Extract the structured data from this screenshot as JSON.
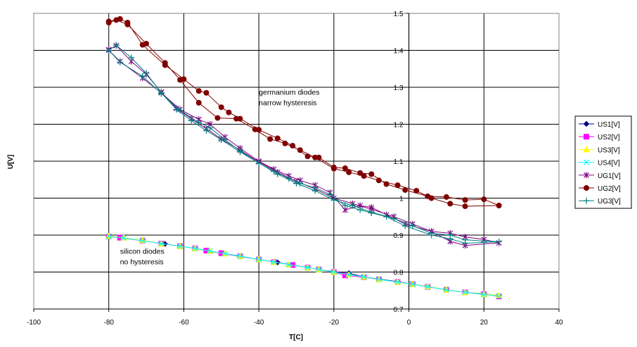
{
  "chart_data": {
    "type": "line",
    "xlabel": "T[C]",
    "ylabel": "U[V]",
    "xlim": [
      -100,
      40
    ],
    "ylim": [
      0.7,
      1.5
    ],
    "x_ticks": [
      -100,
      -80,
      -60,
      -40,
      -20,
      0,
      20,
      40
    ],
    "y_ticks": [
      0.7,
      0.8,
      0.9,
      1.0,
      1.1,
      1.2,
      1.3,
      1.4,
      1.5
    ],
    "x_tick_labels": [
      "-100",
      "-80",
      "-60",
      "-40",
      "-20",
      "0",
      "20",
      "40"
    ],
    "y_tick_labels": [
      "0.7",
      "0.8",
      "0.9",
      "1",
      "1.1",
      "1.2",
      "1.3",
      "1.4",
      "1.5"
    ],
    "grid": true,
    "legend_position": "right",
    "annotations": [
      {
        "lines": [
          "germanium diodes",
          "narrow hysteresis"
        ],
        "x": -40,
        "y": 1.28
      },
      {
        "lines": [
          "silicon diodes",
          "no hysteresis"
        ],
        "x": -77,
        "y": 0.85
      }
    ],
    "series": [
      {
        "name": "US1[V]",
        "color": "#000080",
        "marker": "diamond",
        "x": [
          -80,
          -77,
          -71,
          -65,
          -61,
          -57,
          -54,
          -50,
          -45,
          -40,
          -35,
          -31,
          -27,
          -24,
          -20,
          -16,
          -12,
          -8,
          -3,
          1,
          5,
          10,
          15,
          20,
          24
        ],
        "y": [
          0.896,
          0.893,
          0.885,
          0.876,
          0.87,
          0.864,
          0.858,
          0.851,
          0.842,
          0.834,
          0.826,
          0.819,
          0.812,
          0.807,
          0.801,
          0.797,
          0.787,
          0.781,
          0.774,
          0.767,
          0.761,
          0.752,
          0.745,
          0.741,
          0.736
        ]
      },
      {
        "name": "US2[V]",
        "color": "#FF00FF",
        "marker": "square",
        "x": [
          -80,
          -77,
          -71,
          -66,
          -61,
          -57,
          -54,
          -50,
          -45,
          -40,
          -36,
          -31,
          -27,
          -24,
          -20,
          -17,
          -12,
          -8,
          -3,
          1,
          5,
          10,
          15,
          20,
          24
        ],
        "y": [
          0.896,
          0.893,
          0.885,
          0.877,
          0.87,
          0.864,
          0.858,
          0.851,
          0.843,
          0.834,
          0.827,
          0.819,
          0.812,
          0.807,
          0.8,
          0.791,
          0.786,
          0.78,
          0.773,
          0.767,
          0.76,
          0.752,
          0.745,
          0.74,
          0.734
        ]
      },
      {
        "name": "US3[V]",
        "color": "#FFFF00",
        "marker": "triangle",
        "x": [
          -80,
          -76,
          -71,
          -66,
          -61,
          -57,
          -53,
          -49,
          -45,
          -40,
          -36,
          -32,
          -27,
          -24,
          -20,
          -16,
          -12,
          -8,
          -3,
          1,
          5,
          10,
          15,
          20,
          24
        ],
        "y": [
          0.897,
          0.893,
          0.886,
          0.877,
          0.87,
          0.864,
          0.857,
          0.85,
          0.843,
          0.834,
          0.827,
          0.82,
          0.812,
          0.807,
          0.8,
          0.793,
          0.787,
          0.78,
          0.773,
          0.767,
          0.761,
          0.752,
          0.745,
          0.74,
          0.737
        ]
      },
      {
        "name": "US4[V]",
        "color": "#00FFFF",
        "marker": "x",
        "x": [
          -80,
          -76,
          -71,
          -66,
          -61,
          -57,
          -53,
          -49,
          -45,
          -40,
          -36,
          -32,
          -27,
          -24,
          -20,
          -16,
          -12,
          -8,
          -3,
          1,
          5,
          10,
          15,
          20,
          24
        ],
        "y": [
          0.896,
          0.892,
          0.885,
          0.877,
          0.87,
          0.864,
          0.857,
          0.85,
          0.843,
          0.834,
          0.827,
          0.82,
          0.812,
          0.807,
          0.8,
          0.793,
          0.787,
          0.78,
          0.773,
          0.767,
          0.76,
          0.752,
          0.745,
          0.739,
          0.735
        ]
      },
      {
        "name": "UG1[V]",
        "color": "#800080",
        "marker": "star",
        "x": [
          -80,
          -77,
          -71,
          -66,
          -61,
          -56,
          -53,
          -49,
          -45,
          -40,
          -36,
          -32,
          -29,
          -25,
          -21,
          -17,
          -13,
          -10,
          -6,
          -1,
          6,
          11,
          15,
          20,
          24,
          15,
          11,
          6,
          1,
          -4,
          -10,
          -15,
          -20,
          -25,
          -30,
          -35,
          -40,
          -45,
          -50,
          -54,
          -58,
          -62,
          -66,
          -70,
          -74,
          -78,
          -80
        ],
        "y": [
          1.4,
          1.37,
          1.325,
          1.285,
          1.24,
          1.213,
          1.2,
          1.165,
          1.135,
          1.1,
          1.078,
          1.06,
          1.048,
          1.035,
          1.015,
          0.968,
          0.98,
          0.975,
          0.955,
          0.93,
          0.91,
          0.905,
          0.895,
          0.888,
          0.879,
          0.872,
          0.883,
          0.91,
          0.93,
          0.95,
          0.97,
          0.985,
          1.0,
          1.025,
          1.045,
          1.07,
          1.098,
          1.13,
          1.16,
          1.188,
          1.215,
          1.243,
          1.287,
          1.335,
          1.37,
          1.413,
          1.402
        ]
      },
      {
        "name": "UG2[V]",
        "color": "#800000",
        "marker": "circle",
        "x": [
          -80,
          -77,
          -75,
          -71,
          -65,
          -60,
          -56,
          -54,
          -50,
          -48,
          -45,
          -40,
          -35,
          -31,
          -27,
          -24,
          -20,
          -17,
          -13,
          -10,
          -6,
          -1,
          5,
          10,
          15,
          20,
          24,
          15,
          11,
          6,
          2,
          -3,
          -8,
          -12,
          -16,
          -20,
          -25,
          -29,
          -33,
          -37,
          -41,
          -46,
          -51,
          -56,
          -61,
          -65,
          -70,
          -75,
          -78,
          -80
        ],
        "y": [
          1.478,
          1.485,
          1.475,
          1.415,
          1.36,
          1.322,
          1.29,
          1.285,
          1.246,
          1.232,
          1.215,
          1.185,
          1.162,
          1.142,
          1.113,
          1.11,
          1.083,
          1.081,
          1.068,
          1.065,
          1.038,
          1.022,
          1.005,
          1.003,
          0.995,
          0.997,
          0.98,
          0.978,
          0.985,
          1.0,
          1.02,
          1.035,
          1.048,
          1.06,
          1.07,
          1.08,
          1.11,
          1.13,
          1.148,
          1.16,
          1.186,
          1.215,
          1.217,
          1.258,
          1.32,
          1.366,
          1.418,
          1.47,
          1.482,
          1.475
        ]
      },
      {
        "name": "UG3[V]",
        "color": "#008080",
        "marker": "plus",
        "x": [
          -80,
          -77,
          -71,
          -66,
          -61,
          -56,
          -53,
          -49,
          -45,
          -40,
          -36,
          -32,
          -29,
          -25,
          -21,
          -17,
          -13,
          -10,
          -6,
          -1,
          6,
          11,
          15,
          20,
          24,
          15,
          11,
          6,
          1,
          -4,
          -10,
          -15,
          -20,
          -25,
          -30,
          -35,
          -40,
          -45,
          -50,
          -54,
          -58,
          -62,
          -66,
          -70,
          -74,
          -78,
          -80
        ],
        "y": [
          1.4,
          1.368,
          1.33,
          1.283,
          1.238,
          1.205,
          1.19,
          1.158,
          1.128,
          1.095,
          1.073,
          1.053,
          1.04,
          1.028,
          1.01,
          0.98,
          0.968,
          0.96,
          0.95,
          0.925,
          0.9,
          0.89,
          0.878,
          0.88,
          0.882,
          0.887,
          0.9,
          0.905,
          0.925,
          0.945,
          0.962,
          0.98,
          0.995,
          1.02,
          1.04,
          1.065,
          1.095,
          1.125,
          1.158,
          1.183,
          1.21,
          1.24,
          1.285,
          1.338,
          1.38,
          1.414,
          1.4
        ]
      }
    ]
  }
}
